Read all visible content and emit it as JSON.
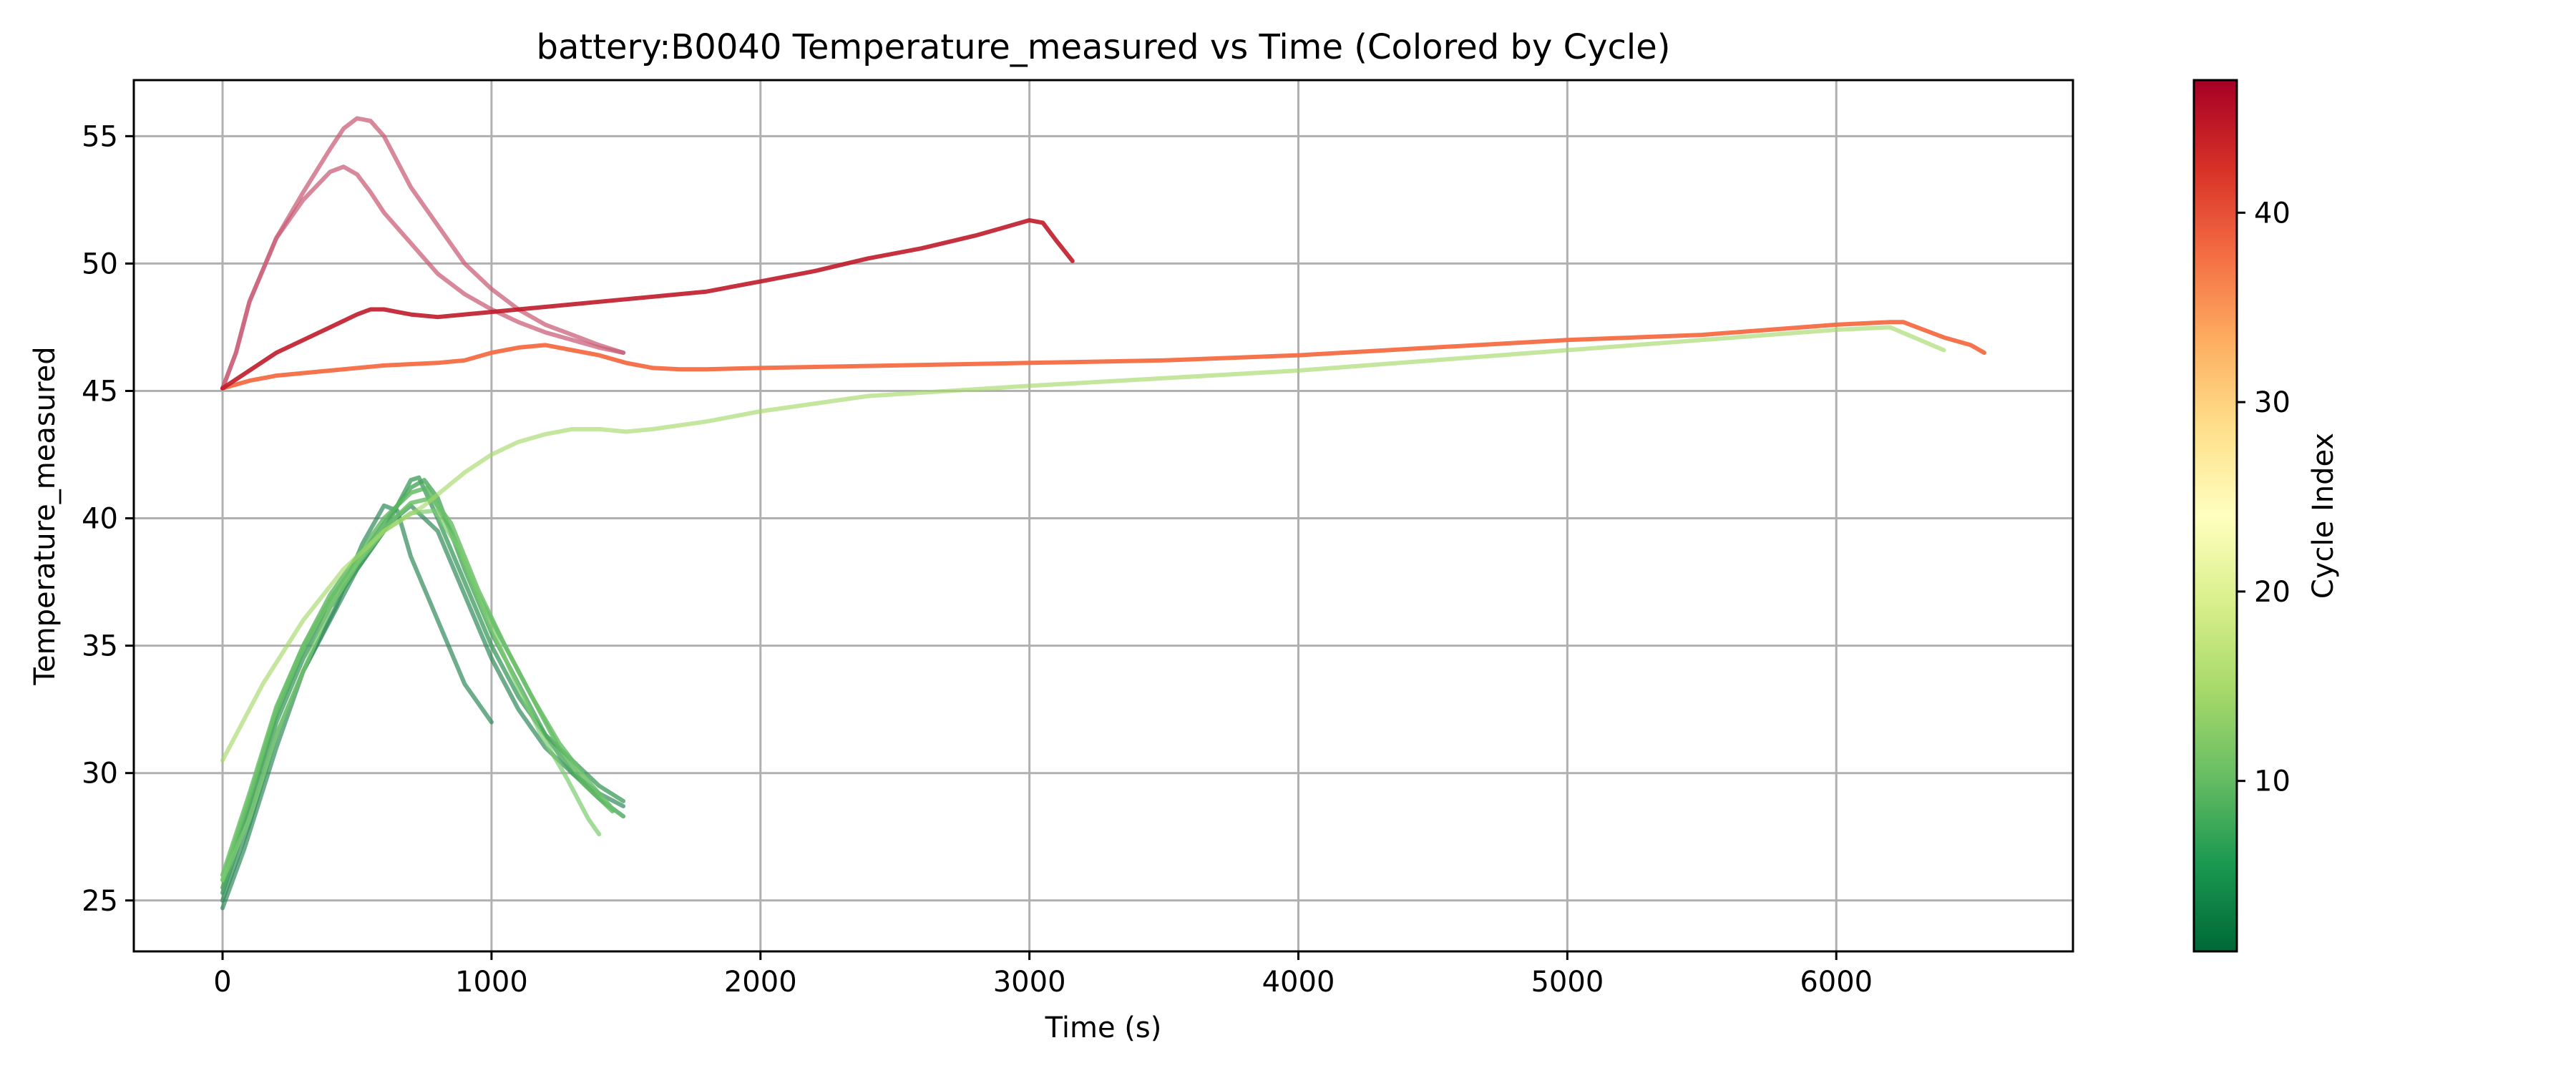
{
  "chart_data": {
    "type": "line",
    "title": "battery:B0040 Temperature_measured vs Time (Colored by Cycle)",
    "xlabel": "Time (s)",
    "ylabel": "Temperature_measured",
    "xlim": [
      -330,
      6880
    ],
    "ylim": [
      23,
      57.2
    ],
    "xticks": [
      0,
      1000,
      2000,
      3000,
      4000,
      5000,
      6000
    ],
    "yticks": [
      25,
      30,
      35,
      40,
      45,
      50,
      55
    ],
    "grid": true,
    "colorbar": {
      "label": "Cycle Index",
      "range": [
        1,
        47
      ],
      "ticks": [
        10,
        20,
        30,
        40
      ],
      "colormap": "RdYlGn_r",
      "stops": [
        "#006837",
        "#1a9850",
        "#66bd63",
        "#a6d96a",
        "#d9ef8b",
        "#ffffbf",
        "#fee08b",
        "#fdae61",
        "#f46d43",
        "#d73027",
        "#a50026"
      ]
    },
    "series": [
      {
        "cycle": 2,
        "color": "#2f8a5a",
        "opacity": 0.7,
        "x": [
          0,
          80,
          200,
          300,
          420,
          520,
          600,
          650,
          700,
          800,
          900,
          1000
        ],
        "y": [
          24.7,
          27,
          31,
          34,
          36.5,
          39,
          40.5,
          40.3,
          38.5,
          36,
          33.5,
          32
        ]
      },
      {
        "cycle": 4,
        "color": "#2f8a5a",
        "opacity": 0.7,
        "x": [
          0,
          100,
          200,
          300,
          400,
          500,
          620,
          700,
          800,
          900,
          1000,
          1100,
          1200,
          1300,
          1400,
          1490
        ],
        "y": [
          25,
          28,
          31.5,
          34,
          36,
          38,
          39.8,
          40.5,
          39.5,
          37,
          34.5,
          32.5,
          31,
          30,
          29.2,
          28.7
        ]
      },
      {
        "cycle": 5,
        "color": "#3a9a5a",
        "opacity": 0.75,
        "x": [
          0,
          100,
          200,
          300,
          400,
          500,
          600,
          700,
          730,
          800,
          900,
          1000,
          1100,
          1200,
          1300,
          1400,
          1490
        ],
        "y": [
          25.3,
          28.5,
          32,
          34.5,
          36.5,
          38,
          39.5,
          41.5,
          41.6,
          40,
          37.5,
          35,
          33,
          31.5,
          30.5,
          29.5,
          28.9
        ]
      },
      {
        "cycle": 7,
        "color": "#4aa85c",
        "opacity": 0.8,
        "x": [
          0,
          100,
          200,
          300,
          400,
          500,
          600,
          700,
          750,
          800,
          900,
          1000,
          1100,
          1200,
          1300,
          1400,
          1490
        ],
        "y": [
          25.5,
          28.8,
          32.3,
          34.8,
          36.8,
          38.3,
          39.8,
          41.2,
          41.5,
          40.8,
          38,
          35.5,
          33.5,
          31.5,
          30,
          29,
          28.3
        ]
      },
      {
        "cycle": 9,
        "color": "#5cb860",
        "opacity": 0.8,
        "x": [
          0,
          100,
          200,
          300,
          400,
          500,
          600,
          700,
          760,
          850,
          950,
          1050,
          1150,
          1250,
          1350,
          1450
        ],
        "y": [
          25.8,
          29,
          32.5,
          35,
          37,
          38.5,
          40,
          41,
          41.2,
          39.5,
          37,
          35,
          33,
          31,
          29.5,
          28.5
        ]
      },
      {
        "cycle": 11,
        "color": "#6cc16a",
        "opacity": 0.85,
        "x": [
          0,
          100,
          200,
          300,
          400,
          500,
          600,
          700,
          780,
          850,
          950,
          1050,
          1150,
          1250,
          1350,
          1450
        ],
        "y": [
          26,
          29.2,
          32.6,
          35,
          36.8,
          38.3,
          39.6,
          40.6,
          40.8,
          39.8,
          37.2,
          35,
          33,
          31.2,
          29.8,
          28.6
        ]
      },
      {
        "cycle": 13,
        "color": "#7ccc70",
        "opacity": 0.7,
        "x": [
          0,
          100,
          200,
          300,
          400,
          500,
          600,
          700,
          790,
          880,
          980,
          1080,
          1180,
          1280,
          1360,
          1400
        ],
        "y": [
          25.8,
          28.2,
          31.5,
          34,
          36.5,
          38.2,
          39.5,
          40.2,
          40.3,
          38.8,
          36.2,
          33.8,
          31.6,
          29.8,
          28.2,
          27.6
        ]
      },
      {
        "cycle": 16,
        "color": "#a6d96a",
        "opacity": 0.65,
        "x": [
          0,
          150,
          300,
          450,
          600,
          750,
          900,
          1000,
          1100,
          1200,
          1300,
          1400,
          1500,
          1600,
          1800,
          2000,
          2400,
          3000,
          4000,
          5000,
          5500,
          6000,
          6200,
          6400
        ],
        "y": [
          30.5,
          33.5,
          36,
          38,
          39.5,
          40.5,
          41.8,
          42.5,
          43,
          43.3,
          43.5,
          43.5,
          43.4,
          43.5,
          43.8,
          44.2,
          44.8,
          45.2,
          45.8,
          46.6,
          47,
          47.4,
          47.5,
          46.6
        ]
      },
      {
        "cycle": 38,
        "color": "#f46d43",
        "opacity": 0.95,
        "x": [
          0,
          100,
          200,
          400,
          600,
          800,
          900,
          1000,
          1100,
          1200,
          1300,
          1400,
          1500,
          1600,
          1700,
          1800,
          2000,
          2500,
          3000,
          3500,
          4000,
          4500,
          5000,
          5500,
          6000,
          6200,
          6250,
          6300,
          6400,
          6500,
          6550
        ],
        "y": [
          45.1,
          45.4,
          45.6,
          45.8,
          46,
          46.1,
          46.2,
          46.5,
          46.7,
          46.8,
          46.6,
          46.4,
          46.1,
          45.9,
          45.85,
          45.85,
          45.9,
          46,
          46.1,
          46.2,
          46.4,
          46.7,
          47,
          47.2,
          47.6,
          47.7,
          47.7,
          47.5,
          47.1,
          46.8,
          46.5
        ]
      },
      {
        "cycle": 44,
        "color": "#c9607a",
        "opacity": 0.75,
        "x": [
          0,
          50,
          100,
          200,
          300,
          400,
          450,
          500,
          550,
          600,
          700,
          800,
          900,
          1000,
          1100,
          1200,
          1300,
          1400,
          1490
        ],
        "y": [
          45.1,
          46.5,
          48.5,
          51,
          52.8,
          54.5,
          55.3,
          55.7,
          55.6,
          55,
          53,
          51.5,
          50,
          49,
          48.2,
          47.6,
          47.2,
          46.8,
          46.5
        ]
      },
      {
        "cycle": 45,
        "color": "#c9607a",
        "opacity": 0.75,
        "x": [
          0,
          50,
          100,
          200,
          300,
          400,
          450,
          500,
          550,
          600,
          700,
          800,
          900,
          1000,
          1100,
          1200,
          1300,
          1400,
          1490
        ],
        "y": [
          45.1,
          46.5,
          48.5,
          51,
          52.5,
          53.6,
          53.8,
          53.5,
          52.8,
          52,
          50.8,
          49.6,
          48.8,
          48.2,
          47.7,
          47.3,
          47,
          46.7,
          46.5
        ]
      },
      {
        "cycle": 46,
        "color": "#c01b2b",
        "opacity": 0.9,
        "x": [
          0,
          100,
          200,
          300,
          400,
          500,
          550,
          600,
          650,
          700,
          800,
          900,
          1000,
          1200,
          1500,
          1800,
          2000,
          2200,
          2400,
          2600,
          2800,
          2900,
          3000,
          3050,
          3100,
          3160
        ],
        "y": [
          45.1,
          45.8,
          46.5,
          47,
          47.5,
          48,
          48.2,
          48.2,
          48.1,
          48,
          47.9,
          48,
          48.1,
          48.3,
          48.6,
          48.9,
          49.3,
          49.7,
          50.2,
          50.6,
          51.1,
          51.4,
          51.7,
          51.6,
          50.9,
          50.1
        ]
      }
    ]
  }
}
